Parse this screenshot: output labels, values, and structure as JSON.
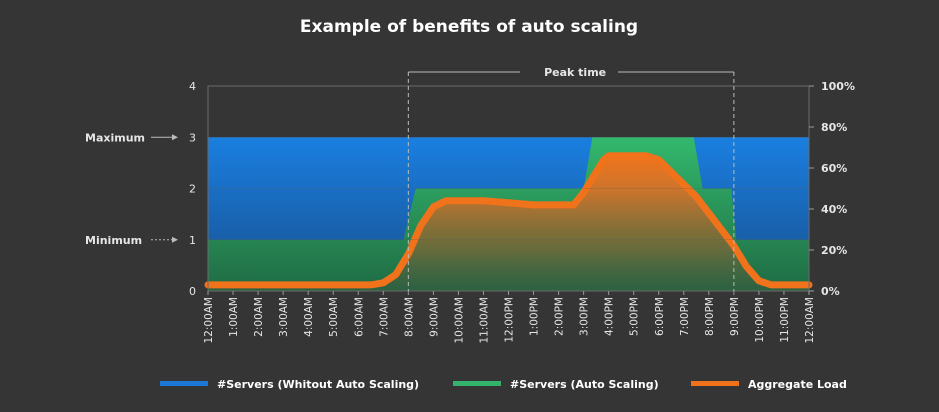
{
  "colors": {
    "background": "#353535",
    "blue": "#1b78d6",
    "green": "#33b36b",
    "orange": "#f0731c"
  },
  "chart_data": {
    "type": "area",
    "title": "Example of benefits of auto scaling",
    "categories": [
      "12:00AM",
      "1:00AM",
      "2:00AM",
      "3:00AM",
      "4:00AM",
      "5:00AM",
      "6:00AM",
      "7:00AM",
      "8:00AM",
      "9:00AM",
      "10:00AM",
      "11:00AM",
      "12:00PM",
      "1:00PM",
      "2:00PM",
      "3:00PM",
      "4:00PM",
      "5:00PM",
      "6:00PM",
      "7:00PM",
      "8:00PM",
      "9:00PM",
      "10:00PM",
      "11:00PM",
      "12:00AM"
    ],
    "left_axis": {
      "min": 0,
      "max": 4,
      "ticks": [
        "0",
        "1",
        "2",
        "3",
        "4"
      ]
    },
    "right_axis": {
      "min": 0,
      "max": 100,
      "ticks": [
        "0%",
        "20%",
        "40%",
        "60%",
        "80%",
        "100%"
      ]
    },
    "series": [
      {
        "name": "#Servers (Whitout Auto Scaling)",
        "axis": "left",
        "color": "#1b78d6",
        "x": [
          0,
          24
        ],
        "values": [
          3,
          3
        ]
      },
      {
        "name": "#Servers (Auto Scaling)",
        "axis": "left",
        "color": "#33b36b",
        "x": [
          0,
          7.8,
          8.3,
          15.0,
          15.35,
          19.4,
          19.75,
          20.9,
          21.1,
          24
        ],
        "values": [
          1,
          1,
          2,
          2,
          3,
          3,
          2,
          2,
          1,
          1
        ]
      },
      {
        "name": "Aggregate Load",
        "axis": "right",
        "color": "#f0731c",
        "x": [
          0,
          6.5,
          7.0,
          7.5,
          8.0,
          8.5,
          9.0,
          9.5,
          10,
          11,
          12,
          13,
          14,
          14.6,
          15.0,
          15.5,
          15.8,
          16.0,
          16.5,
          17.0,
          17.5,
          18.0,
          18.5,
          19.0,
          19.5,
          20.0,
          20.5,
          21.0,
          21.5,
          22.0,
          22.5,
          23,
          24
        ],
        "values": [
          3,
          3,
          4,
          8,
          18,
          32,
          41,
          44,
          44,
          44,
          43,
          42,
          42,
          42,
          48,
          58,
          64,
          66,
          66,
          66,
          66,
          64,
          58,
          52,
          46,
          38,
          30,
          22,
          12,
          5,
          3,
          3,
          3
        ]
      }
    ],
    "annotations": {
      "maximum_label": "Maximum",
      "maximum_value": 3,
      "minimum_label": "Minimum",
      "minimum_value": 1,
      "peak_label": "Peak time",
      "peak_start": 8,
      "peak_end": 21
    },
    "legend": [
      "#Servers (Whitout Auto Scaling)",
      "#Servers (Auto Scaling)",
      "Aggregate Load"
    ],
    "legend_position": "bottom"
  }
}
